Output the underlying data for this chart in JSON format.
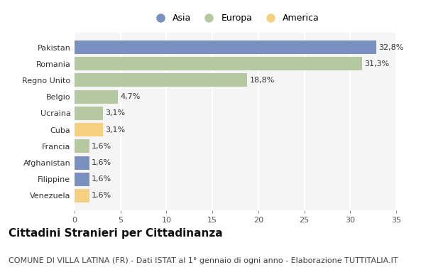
{
  "categories": [
    "Pakistan",
    "Romania",
    "Regno Unito",
    "Belgio",
    "Ucraina",
    "Cuba",
    "Francia",
    "Afghanistan",
    "Filippine",
    "Venezuela"
  ],
  "values": [
    32.8,
    31.3,
    18.8,
    4.7,
    3.1,
    3.1,
    1.6,
    1.6,
    1.6,
    1.6
  ],
  "labels": [
    "32,8%",
    "31,3%",
    "18,8%",
    "4,7%",
    "3,1%",
    "3,1%",
    "1,6%",
    "1,6%",
    "1,6%",
    "1,6%"
  ],
  "colors": [
    "#7a90c0",
    "#b5c8a0",
    "#b5c8a0",
    "#b5c8a0",
    "#b5c8a0",
    "#f5d080",
    "#b5c8a0",
    "#7a90c0",
    "#7a90c0",
    "#f5d080"
  ],
  "legend": [
    {
      "label": "Asia",
      "color": "#7a90c0"
    },
    {
      "label": "Europa",
      "color": "#b5c8a0"
    },
    {
      "label": "America",
      "color": "#f5d080"
    }
  ],
  "xlim": [
    0,
    35
  ],
  "xticks": [
    0,
    5,
    10,
    15,
    20,
    25,
    30,
    35
  ],
  "title": "Cittadini Stranieri per Cittadinanza",
  "subtitle": "COMUNE DI VILLA LATINA (FR) - Dati ISTAT al 1° gennaio di ogni anno - Elaborazione TUTTITALIA.IT",
  "background_color": "#ffffff",
  "plot_bg_color": "#f5f5f5",
  "bar_height": 0.82,
  "title_fontsize": 11,
  "subtitle_fontsize": 8,
  "label_fontsize": 8,
  "tick_fontsize": 8,
  "legend_fontsize": 9
}
